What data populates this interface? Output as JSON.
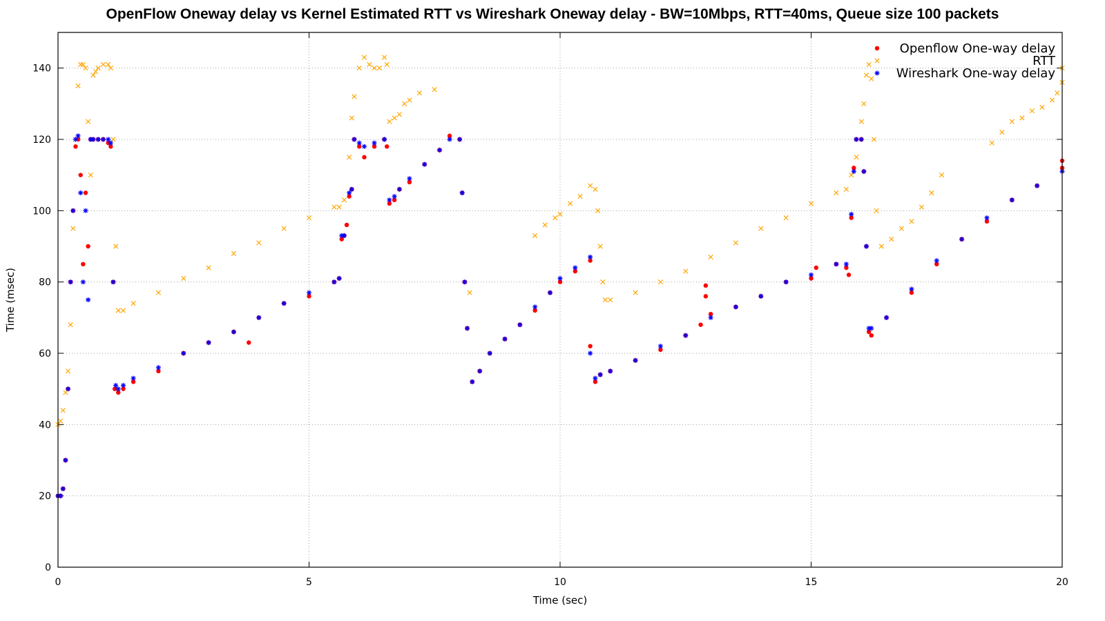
{
  "chart_data": {
    "type": "scatter",
    "title": "OpenFlow Oneway delay vs Kernel Estimated RTT vs Wireshark Oneway delay - BW=10Mbps, RTT=40ms, Queue size 100 packets",
    "xlabel": "Time (sec)",
    "ylabel": "Time (msec)",
    "xlim": [
      0,
      20
    ],
    "ylim": [
      0,
      150
    ],
    "xticks": [
      0,
      5,
      10,
      15,
      20
    ],
    "yticks": [
      0,
      20,
      40,
      60,
      80,
      100,
      120,
      140
    ],
    "grid": true,
    "legend_position": "top-right",
    "series": [
      {
        "name": "Openflow One-way delay",
        "marker": "circle",
        "color": "#ff0000",
        "points": [
          [
            0.0,
            20
          ],
          [
            0.05,
            20
          ],
          [
            0.1,
            22
          ],
          [
            0.15,
            30
          ],
          [
            0.2,
            50
          ],
          [
            0.25,
            80
          ],
          [
            0.3,
            100
          ],
          [
            0.35,
            118
          ],
          [
            0.4,
            120
          ],
          [
            0.45,
            110
          ],
          [
            0.5,
            85
          ],
          [
            0.55,
            105
          ],
          [
            0.6,
            90
          ],
          [
            0.65,
            120
          ],
          [
            0.7,
            120
          ],
          [
            0.8,
            120
          ],
          [
            0.9,
            120
          ],
          [
            1.0,
            119
          ],
          [
            1.05,
            118
          ],
          [
            1.1,
            80
          ],
          [
            1.13,
            50
          ],
          [
            1.2,
            49
          ],
          [
            1.3,
            50
          ],
          [
            1.5,
            52
          ],
          [
            2.0,
            55
          ],
          [
            2.5,
            60
          ],
          [
            3.0,
            63
          ],
          [
            3.5,
            66
          ],
          [
            3.8,
            63
          ],
          [
            4.0,
            70
          ],
          [
            4.5,
            74
          ],
          [
            5.0,
            76
          ],
          [
            5.5,
            80
          ],
          [
            5.6,
            81
          ],
          [
            5.65,
            92
          ],
          [
            5.7,
            93
          ],
          [
            5.75,
            96
          ],
          [
            5.8,
            104
          ],
          [
            5.85,
            106
          ],
          [
            5.9,
            120
          ],
          [
            6.0,
            118
          ],
          [
            6.1,
            115
          ],
          [
            6.3,
            118
          ],
          [
            6.5,
            120
          ],
          [
            6.55,
            118
          ],
          [
            6.6,
            102
          ],
          [
            6.7,
            103
          ],
          [
            6.8,
            106
          ],
          [
            7.0,
            108
          ],
          [
            7.3,
            113
          ],
          [
            7.6,
            117
          ],
          [
            7.8,
            121
          ],
          [
            8.0,
            120
          ],
          [
            8.05,
            105
          ],
          [
            8.1,
            80
          ],
          [
            8.15,
            67
          ],
          [
            8.25,
            52
          ],
          [
            8.4,
            55
          ],
          [
            8.6,
            60
          ],
          [
            8.9,
            64
          ],
          [
            9.2,
            68
          ],
          [
            9.5,
            72
          ],
          [
            9.8,
            77
          ],
          [
            10.0,
            80
          ],
          [
            10.3,
            83
          ],
          [
            10.6,
            86
          ],
          [
            10.6,
            62
          ],
          [
            10.7,
            52
          ],
          [
            10.8,
            54
          ],
          [
            11.0,
            55
          ],
          [
            11.5,
            58
          ],
          [
            12.0,
            61
          ],
          [
            12.5,
            65
          ],
          [
            12.8,
            68
          ],
          [
            12.9,
            79
          ],
          [
            12.9,
            76
          ],
          [
            13.0,
            71
          ],
          [
            13.5,
            73
          ],
          [
            14.0,
            76
          ],
          [
            14.5,
            80
          ],
          [
            15.0,
            81
          ],
          [
            15.1,
            84
          ],
          [
            15.5,
            85
          ],
          [
            15.7,
            84
          ],
          [
            15.75,
            82
          ],
          [
            15.8,
            98
          ],
          [
            15.85,
            112
          ],
          [
            15.9,
            120
          ],
          [
            16.0,
            120
          ],
          [
            16.05,
            111
          ],
          [
            16.1,
            90
          ],
          [
            16.15,
            66
          ],
          [
            16.2,
            65
          ],
          [
            16.5,
            70
          ],
          [
            17.0,
            77
          ],
          [
            17.5,
            85
          ],
          [
            18.0,
            92
          ],
          [
            18.5,
            97
          ],
          [
            19.0,
            103
          ],
          [
            19.5,
            107
          ],
          [
            20.0,
            112
          ],
          [
            20.0,
            114
          ]
        ]
      },
      {
        "name": "RTT",
        "marker": "x",
        "color": "#ffa500",
        "points": [
          [
            0.0,
            40
          ],
          [
            0.05,
            41
          ],
          [
            0.1,
            44
          ],
          [
            0.15,
            49
          ],
          [
            0.2,
            55
          ],
          [
            0.25,
            68
          ],
          [
            0.3,
            95
          ],
          [
            0.35,
            120
          ],
          [
            0.4,
            135
          ],
          [
            0.45,
            141
          ],
          [
            0.5,
            141
          ],
          [
            0.55,
            140
          ],
          [
            0.6,
            125
          ],
          [
            0.65,
            110
          ],
          [
            0.7,
            138
          ],
          [
            0.75,
            139
          ],
          [
            0.8,
            140
          ],
          [
            0.9,
            141
          ],
          [
            1.0,
            141
          ],
          [
            1.05,
            140
          ],
          [
            1.1,
            120
          ],
          [
            1.15,
            90
          ],
          [
            1.2,
            72
          ],
          [
            1.3,
            72
          ],
          [
            1.5,
            74
          ],
          [
            2.0,
            77
          ],
          [
            2.5,
            81
          ],
          [
            3.0,
            84
          ],
          [
            3.5,
            88
          ],
          [
            4.0,
            91
          ],
          [
            4.5,
            95
          ],
          [
            5.0,
            98
          ],
          [
            5.5,
            101
          ],
          [
            5.6,
            101
          ],
          [
            5.7,
            103
          ],
          [
            5.8,
            115
          ],
          [
            5.85,
            126
          ],
          [
            5.9,
            132
          ],
          [
            6.0,
            140
          ],
          [
            6.1,
            143
          ],
          [
            6.2,
            141
          ],
          [
            6.3,
            140
          ],
          [
            6.4,
            140
          ],
          [
            6.5,
            143
          ],
          [
            6.55,
            141
          ],
          [
            6.6,
            125
          ],
          [
            6.7,
            126
          ],
          [
            6.8,
            127
          ],
          [
            6.9,
            130
          ],
          [
            7.0,
            131
          ],
          [
            7.2,
            133
          ],
          [
            7.5,
            134
          ],
          [
            8.2,
            77
          ],
          [
            9.5,
            93
          ],
          [
            9.7,
            96
          ],
          [
            9.9,
            98
          ],
          [
            10.0,
            99
          ],
          [
            10.2,
            102
          ],
          [
            10.4,
            104
          ],
          [
            10.6,
            107
          ],
          [
            10.7,
            106
          ],
          [
            10.75,
            100
          ],
          [
            10.8,
            90
          ],
          [
            10.85,
            80
          ],
          [
            10.9,
            75
          ],
          [
            11.0,
            75
          ],
          [
            11.5,
            77
          ],
          [
            12.0,
            80
          ],
          [
            12.5,
            83
          ],
          [
            13.0,
            87
          ],
          [
            13.5,
            91
          ],
          [
            14.0,
            95
          ],
          [
            14.5,
            98
          ],
          [
            15.0,
            102
          ],
          [
            15.5,
            105
          ],
          [
            15.7,
            106
          ],
          [
            15.8,
            110
          ],
          [
            15.9,
            115
          ],
          [
            16.0,
            125
          ],
          [
            16.05,
            130
          ],
          [
            16.1,
            138
          ],
          [
            16.15,
            141
          ],
          [
            16.2,
            137
          ],
          [
            16.25,
            120
          ],
          [
            16.3,
            100
          ],
          [
            16.4,
            90
          ],
          [
            16.6,
            92
          ],
          [
            16.8,
            95
          ],
          [
            17.0,
            97
          ],
          [
            17.2,
            101
          ],
          [
            17.4,
            105
          ],
          [
            17.6,
            110
          ],
          [
            18.6,
            119
          ],
          [
            18.8,
            122
          ],
          [
            19.0,
            125
          ],
          [
            19.2,
            126
          ],
          [
            19.4,
            128
          ],
          [
            19.6,
            129
          ],
          [
            19.8,
            131
          ],
          [
            19.9,
            133
          ],
          [
            20.0,
            136
          ],
          [
            20.0,
            140
          ]
        ]
      },
      {
        "name": "Wireshark One-way delay",
        "marker": "star",
        "color": "#0000ff",
        "points": [
          [
            0.0,
            20
          ],
          [
            0.05,
            20
          ],
          [
            0.1,
            22
          ],
          [
            0.15,
            30
          ],
          [
            0.2,
            50
          ],
          [
            0.25,
            80
          ],
          [
            0.3,
            100
          ],
          [
            0.35,
            120
          ],
          [
            0.4,
            121
          ],
          [
            0.45,
            105
          ],
          [
            0.5,
            80
          ],
          [
            0.55,
            100
          ],
          [
            0.6,
            75
          ],
          [
            0.65,
            120
          ],
          [
            0.7,
            120
          ],
          [
            0.8,
            120
          ],
          [
            0.9,
            120
          ],
          [
            1.0,
            120
          ],
          [
            1.05,
            119
          ],
          [
            1.1,
            80
          ],
          [
            1.15,
            51
          ],
          [
            1.2,
            50
          ],
          [
            1.3,
            51
          ],
          [
            1.5,
            53
          ],
          [
            2.0,
            56
          ],
          [
            2.5,
            60
          ],
          [
            3.0,
            63
          ],
          [
            3.5,
            66
          ],
          [
            4.0,
            70
          ],
          [
            4.5,
            74
          ],
          [
            5.0,
            77
          ],
          [
            5.5,
            80
          ],
          [
            5.6,
            81
          ],
          [
            5.65,
            93
          ],
          [
            5.7,
            93
          ],
          [
            5.8,
            105
          ],
          [
            5.85,
            106
          ],
          [
            5.9,
            120
          ],
          [
            6.0,
            119
          ],
          [
            6.1,
            118
          ],
          [
            6.3,
            119
          ],
          [
            6.5,
            120
          ],
          [
            6.6,
            103
          ],
          [
            6.7,
            104
          ],
          [
            6.8,
            106
          ],
          [
            7.0,
            109
          ],
          [
            7.3,
            113
          ],
          [
            7.6,
            117
          ],
          [
            7.8,
            120
          ],
          [
            8.0,
            120
          ],
          [
            8.05,
            105
          ],
          [
            8.1,
            80
          ],
          [
            8.15,
            67
          ],
          [
            8.25,
            52
          ],
          [
            8.4,
            55
          ],
          [
            8.6,
            60
          ],
          [
            8.9,
            64
          ],
          [
            9.2,
            68
          ],
          [
            9.5,
            73
          ],
          [
            9.8,
            77
          ],
          [
            10.0,
            81
          ],
          [
            10.3,
            84
          ],
          [
            10.6,
            87
          ],
          [
            10.6,
            60
          ],
          [
            10.7,
            53
          ],
          [
            10.8,
            54
          ],
          [
            11.0,
            55
          ],
          [
            11.5,
            58
          ],
          [
            12.0,
            62
          ],
          [
            12.5,
            65
          ],
          [
            13.0,
            70
          ],
          [
            13.5,
            73
          ],
          [
            14.0,
            76
          ],
          [
            14.5,
            80
          ],
          [
            15.0,
            82
          ],
          [
            15.5,
            85
          ],
          [
            15.7,
            85
          ],
          [
            15.8,
            99
          ],
          [
            15.85,
            111
          ],
          [
            15.9,
            120
          ],
          [
            16.0,
            120
          ],
          [
            16.05,
            111
          ],
          [
            16.1,
            90
          ],
          [
            16.15,
            67
          ],
          [
            16.2,
            67
          ],
          [
            16.5,
            70
          ],
          [
            17.0,
            78
          ],
          [
            17.5,
            86
          ],
          [
            18.0,
            92
          ],
          [
            18.5,
            98
          ],
          [
            19.0,
            103
          ],
          [
            19.5,
            107
          ],
          [
            20.0,
            111
          ]
        ]
      }
    ]
  }
}
